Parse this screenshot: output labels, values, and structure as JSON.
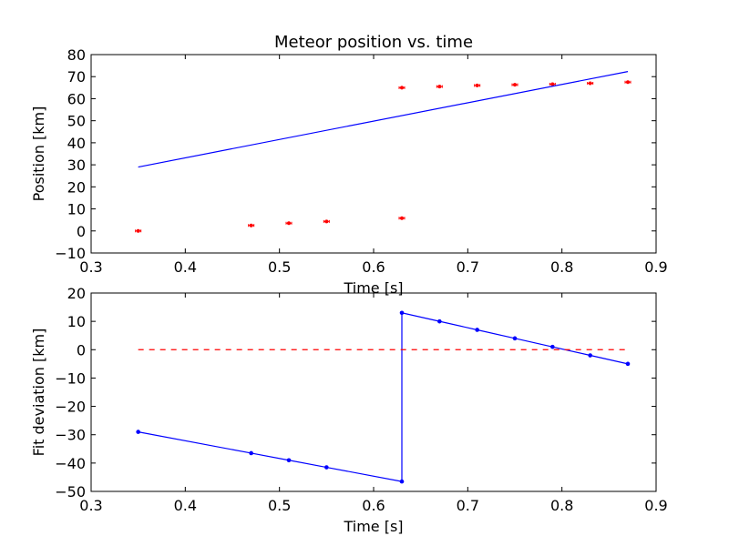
{
  "chart_data": [
    {
      "type": "scatter",
      "title": "Meteor position vs. time",
      "xlabel": "Time [s]",
      "ylabel": "Position [km]",
      "xlim": [
        0.3,
        0.9
      ],
      "ylim": [
        -10,
        80
      ],
      "xticks": [
        "0.3",
        "0.4",
        "0.5",
        "0.6",
        "0.7",
        "0.8",
        "0.9"
      ],
      "yticks": [
        "−10",
        "0",
        "10",
        "20",
        "30",
        "40",
        "50",
        "60",
        "70",
        "80"
      ],
      "grid": false,
      "series": [
        {
          "kind": "points-with-error-bars",
          "color": "#ff0000",
          "x": [
            0.35,
            0.47,
            0.51,
            0.55,
            0.63,
            0.63,
            0.67,
            0.71,
            0.75,
            0.79,
            0.83,
            0.87
          ],
          "y": [
            0.0,
            2.5,
            3.5,
            4.3,
            5.8,
            65.0,
            65.5,
            66.0,
            66.3,
            66.6,
            67.0,
            67.5
          ]
        },
        {
          "kind": "fit-line",
          "color": "#0000ff",
          "x": [
            0.35,
            0.87
          ],
          "y": [
            29.0,
            72.3
          ]
        }
      ]
    },
    {
      "type": "line",
      "title": "",
      "xlabel": "Time [s]",
      "ylabel": "Fit deviation [km]",
      "xlim": [
        0.3,
        0.9
      ],
      "ylim": [
        -50,
        20
      ],
      "xticks": [
        "0.3",
        "0.4",
        "0.5",
        "0.6",
        "0.7",
        "0.8",
        "0.9"
      ],
      "yticks": [
        "−50",
        "−40",
        "−30",
        "−20",
        "−10",
        "0",
        "10",
        "20"
      ],
      "grid": false,
      "series": [
        {
          "kind": "line-with-markers",
          "color": "#0000ff",
          "x": [
            0.35,
            0.47,
            0.51,
            0.55,
            0.63,
            0.63,
            0.67,
            0.71,
            0.75,
            0.79,
            0.83,
            0.87
          ],
          "y": [
            -29.0,
            -36.5,
            -39.0,
            -41.5,
            -46.5,
            13.0,
            10.0,
            7.0,
            4.0,
            1.0,
            -2.0,
            -5.0
          ]
        },
        {
          "kind": "dashed-reference-line",
          "color": "#ff0000",
          "x": [
            0.35,
            0.87
          ],
          "y": [
            0,
            0
          ]
        }
      ]
    }
  ]
}
